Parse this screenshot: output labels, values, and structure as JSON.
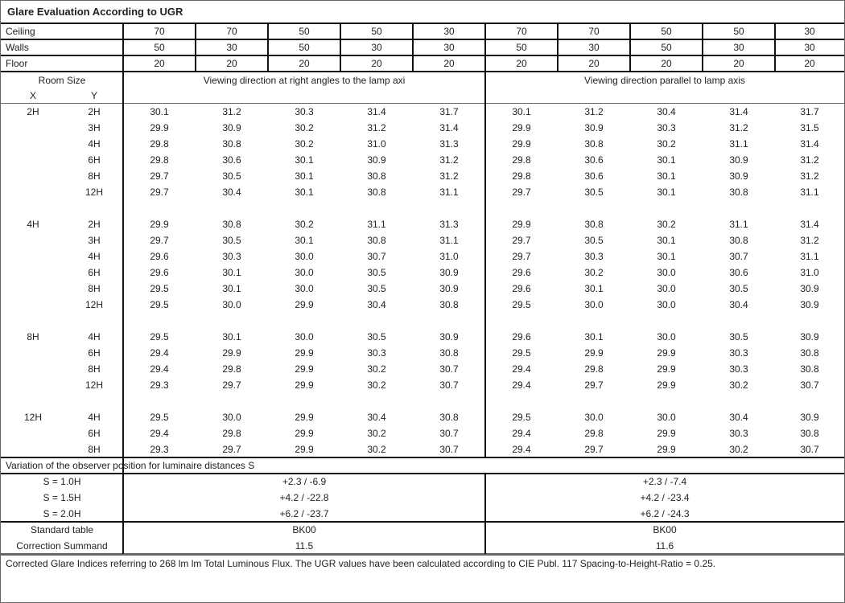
{
  "title": "Glare Evaluation According to UGR",
  "reflectances": [
    {
      "label": "Ceiling",
      "values": [
        "70",
        "70",
        "50",
        "50",
        "30",
        "70",
        "70",
        "50",
        "50",
        "30"
      ]
    },
    {
      "label": "Walls",
      "values": [
        "50",
        "30",
        "50",
        "30",
        "30",
        "50",
        "30",
        "50",
        "30",
        "30"
      ]
    },
    {
      "label": "Floor",
      "values": [
        "20",
        "20",
        "20",
        "20",
        "20",
        "20",
        "20",
        "20",
        "20",
        "20"
      ]
    }
  ],
  "header": {
    "room_size": "Room Size",
    "x": "X",
    "y": "Y",
    "right_angles": "Viewing direction at right angles to the lamp axi",
    "parallel": "Viewing direction parallel to lamp axis"
  },
  "groups": [
    {
      "x": "2H",
      "rows": [
        {
          "y": "2H",
          "values": [
            "30.1",
            "31.2",
            "30.3",
            "31.4",
            "31.7",
            "30.1",
            "31.2",
            "30.4",
            "31.4",
            "31.7"
          ]
        },
        {
          "y": "3H",
          "values": [
            "29.9",
            "30.9",
            "30.2",
            "31.2",
            "31.4",
            "29.9",
            "30.9",
            "30.3",
            "31.2",
            "31.5"
          ]
        },
        {
          "y": "4H",
          "values": [
            "29.8",
            "30.8",
            "30.2",
            "31.0",
            "31.3",
            "29.9",
            "30.8",
            "30.2",
            "31.1",
            "31.4"
          ]
        },
        {
          "y": "6H",
          "values": [
            "29.8",
            "30.6",
            "30.1",
            "30.9",
            "31.2",
            "29.8",
            "30.6",
            "30.1",
            "30.9",
            "31.2"
          ]
        },
        {
          "y": "8H",
          "values": [
            "29.7",
            "30.5",
            "30.1",
            "30.8",
            "31.2",
            "29.8",
            "30.6",
            "30.1",
            "30.9",
            "31.2"
          ]
        },
        {
          "y": "12H",
          "values": [
            "29.7",
            "30.4",
            "30.1",
            "30.8",
            "31.1",
            "29.7",
            "30.5",
            "30.1",
            "30.8",
            "31.1"
          ]
        }
      ]
    },
    {
      "x": "4H",
      "rows": [
        {
          "y": "2H",
          "values": [
            "29.9",
            "30.8",
            "30.2",
            "31.1",
            "31.3",
            "29.9",
            "30.8",
            "30.2",
            "31.1",
            "31.4"
          ]
        },
        {
          "y": "3H",
          "values": [
            "29.7",
            "30.5",
            "30.1",
            "30.8",
            "31.1",
            "29.7",
            "30.5",
            "30.1",
            "30.8",
            "31.2"
          ]
        },
        {
          "y": "4H",
          "values": [
            "29.6",
            "30.3",
            "30.0",
            "30.7",
            "31.0",
            "29.7",
            "30.3",
            "30.1",
            "30.7",
            "31.1"
          ]
        },
        {
          "y": "6H",
          "values": [
            "29.6",
            "30.1",
            "30.0",
            "30.5",
            "30.9",
            "29.6",
            "30.2",
            "30.0",
            "30.6",
            "31.0"
          ]
        },
        {
          "y": "8H",
          "values": [
            "29.5",
            "30.1",
            "30.0",
            "30.5",
            "30.9",
            "29.6",
            "30.1",
            "30.0",
            "30.5",
            "30.9"
          ]
        },
        {
          "y": "12H",
          "values": [
            "29.5",
            "30.0",
            "29.9",
            "30.4",
            "30.8",
            "29.5",
            "30.0",
            "30.0",
            "30.4",
            "30.9"
          ]
        }
      ]
    },
    {
      "x": "8H",
      "rows": [
        {
          "y": "4H",
          "values": [
            "29.5",
            "30.1",
            "30.0",
            "30.5",
            "30.9",
            "29.6",
            "30.1",
            "30.0",
            "30.5",
            "30.9"
          ]
        },
        {
          "y": "6H",
          "values": [
            "29.4",
            "29.9",
            "29.9",
            "30.3",
            "30.8",
            "29.5",
            "29.9",
            "29.9",
            "30.3",
            "30.8"
          ]
        },
        {
          "y": "8H",
          "values": [
            "29.4",
            "29.8",
            "29.9",
            "30.2",
            "30.7",
            "29.4",
            "29.8",
            "29.9",
            "30.3",
            "30.8"
          ]
        },
        {
          "y": "12H",
          "values": [
            "29.3",
            "29.7",
            "29.9",
            "30.2",
            "30.7",
            "29.4",
            "29.7",
            "29.9",
            "30.2",
            "30.7"
          ]
        }
      ]
    },
    {
      "x": "12H",
      "rows": [
        {
          "y": "4H",
          "values": [
            "29.5",
            "30.0",
            "29.9",
            "30.4",
            "30.8",
            "29.5",
            "30.0",
            "30.0",
            "30.4",
            "30.9"
          ]
        },
        {
          "y": "6H",
          "values": [
            "29.4",
            "29.8",
            "29.9",
            "30.2",
            "30.7",
            "29.4",
            "29.8",
            "29.9",
            "30.3",
            "30.8"
          ]
        },
        {
          "y": "8H",
          "values": [
            "29.3",
            "29.7",
            "29.9",
            "30.2",
            "30.7",
            "29.4",
            "29.7",
            "29.9",
            "30.2",
            "30.7"
          ]
        }
      ]
    }
  ],
  "variation": {
    "title": "Variation of the observer position for luminaire distances S",
    "rows": [
      {
        "label": "S = 1.0H",
        "right_angles": "+2.3 / -6.9",
        "parallel": "+2.3 / -7.4"
      },
      {
        "label": "S = 1.5H",
        "right_angles": "+4.2 / -22.8",
        "parallel": "+4.2 / -23.4"
      },
      {
        "label": "S = 2.0H",
        "right_angles": "+6.2 / -23.7",
        "parallel": "+6.2 / -24.3"
      }
    ]
  },
  "standard": [
    {
      "label": "Standard table",
      "right_angles": "BK00",
      "parallel": "BK00"
    },
    {
      "label": "Correction Summand",
      "right_angles": "11.5",
      "parallel": "11.6"
    }
  ],
  "footnote": "Corrected Glare Indices referring to 268 lm lm Total Luminous Flux. The UGR values have been calculated according to CIE Publ. 117    Spacing-to-Height-Ratio = 0.25."
}
